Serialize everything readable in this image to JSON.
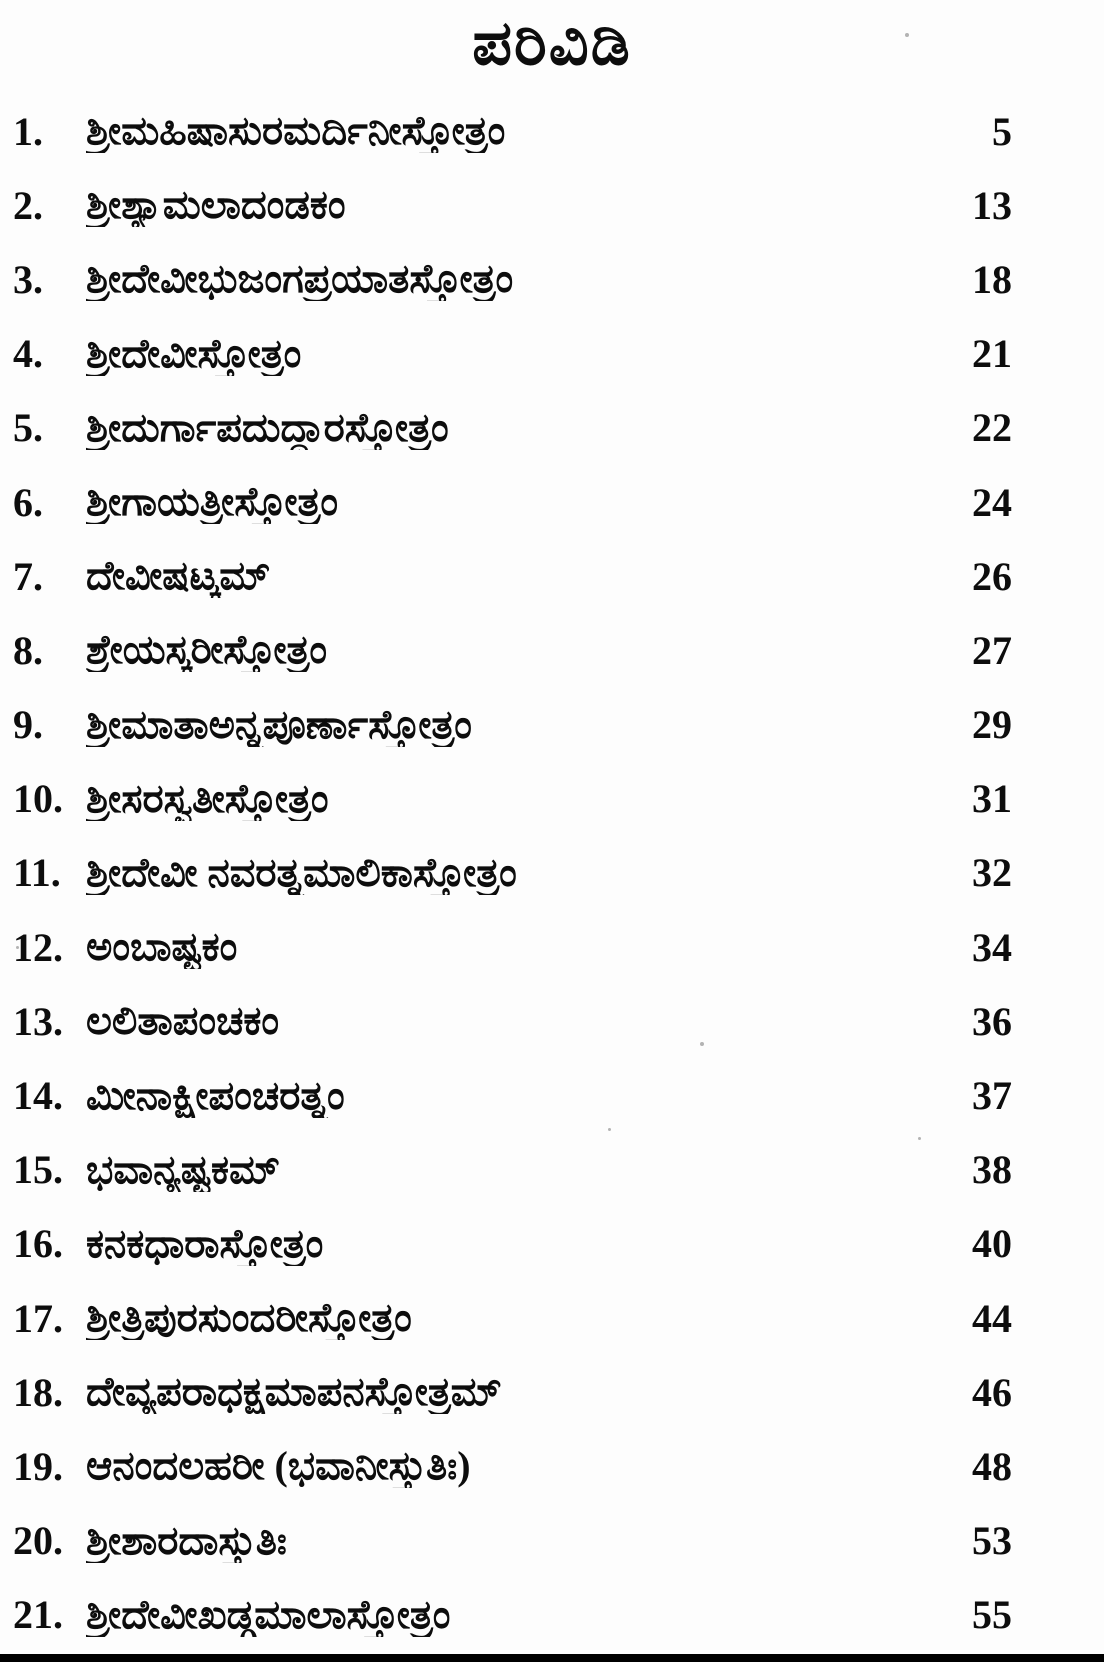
{
  "page": {
    "title": "ಪರಿವಿಡಿ",
    "ink_color": "#0d0d0d",
    "paper_color": "#fdfdfd",
    "entries": [
      {
        "num": "1.",
        "title": "ಶ್ರೀಮಹಿಷಾಸುರಮರ್ದಿನೀಸ್ತೋತ್ರಂ",
        "page": "5"
      },
      {
        "num": "2.",
        "title": "ಶ್ರೀಶ್ಯಾಮಲಾದಂಡಕಂ",
        "page": "13"
      },
      {
        "num": "3.",
        "title": "ಶ್ರೀದೇವೀಭುಜಂಗಪ್ರಯಾತಸ್ತೋತ್ರಂ",
        "page": "18"
      },
      {
        "num": "4.",
        "title": "ಶ್ರೀದೇವೀಸ್ತೋತ್ರಂ",
        "page": "21"
      },
      {
        "num": "5.",
        "title": "ಶ್ರೀದುರ್ಗಾಪದುದ್ಧಾರಸ್ತೋತ್ರಂ",
        "page": "22"
      },
      {
        "num": "6.",
        "title": "ಶ್ರೀಗಾಯತ್ರೀಸ್ತೋತ್ರಂ",
        "page": "24"
      },
      {
        "num": "7.",
        "title": "ದೇವೀಷಟ್ಕಮ್",
        "page": "26"
      },
      {
        "num": "8.",
        "title": "ಶ್ರೇಯಸ್ಕರೀಸ್ತೋತ್ರಂ",
        "page": "27"
      },
      {
        "num": "9.",
        "title": "ಶ್ರೀಮಾತಾಅನ್ನಪೂರ್ಣಾಸ್ತೋತ್ರಂ",
        "page": "29"
      },
      {
        "num": "10.",
        "title": "ಶ್ರೀಸರಸ್ವತೀಸ್ತೋತ್ರಂ",
        "page": "31"
      },
      {
        "num": "11.",
        "title": "ಶ್ರೀದೇವೀ ನವರತ್ನಮಾಲಿಕಾಸ್ತೋತ್ರಂ",
        "page": "32"
      },
      {
        "num": "12.",
        "title": "ಅಂಬಾಷ್ಟಕಂ",
        "page": "34"
      },
      {
        "num": "13.",
        "title": "ಲಲಿತಾಪಂಚಕಂ",
        "page": "36"
      },
      {
        "num": "14.",
        "title": "ಮೀನಾಕ್ಷೀಪಂಚರತ್ನಂ",
        "page": "37"
      },
      {
        "num": "15.",
        "title": "ಭವಾನ್ಯಷ್ಟಕಮ್",
        "page": "38"
      },
      {
        "num": "16.",
        "title": "ಕನಕಧಾರಾಸ್ತೋತ್ರಂ",
        "page": "40"
      },
      {
        "num": "17.",
        "title": "ಶ್ರೀತ್ರಿಪುರಸುಂದರೀಸ್ತೋತ್ರಂ",
        "page": "44"
      },
      {
        "num": "18.",
        "title": "ದೇವ್ಯಪರಾಧಕ್ಷಮಾಪನಸ್ತೋತ್ರಮ್",
        "page": "46"
      },
      {
        "num": "19.",
        "title": "ಆನಂದಲಹರೀ (ಭವಾನೀಸ್ತುತಿಃ)",
        "page": "48"
      },
      {
        "num": "20.",
        "title": "ಶ್ರೀಶಾರದಾಸ್ತುತಿಃ",
        "page": "53"
      },
      {
        "num": "21.",
        "title": "ಶ್ರೀದೇವೀಖಡ್ಗಮಾಲಾಸ್ತೋತ್ರಂ",
        "page": "55"
      }
    ]
  }
}
